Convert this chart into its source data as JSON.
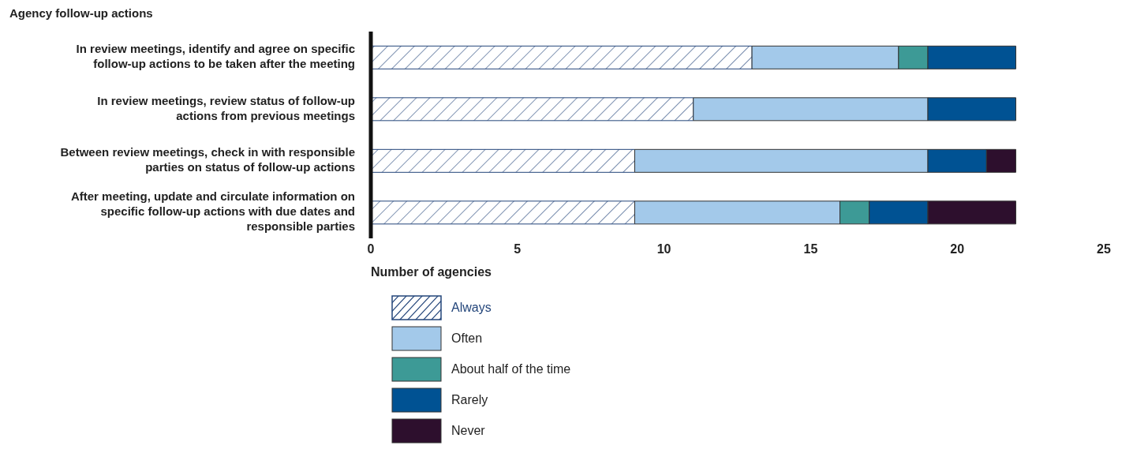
{
  "chart_data": {
    "type": "bar",
    "orientation": "horizontal",
    "stacked": true,
    "title": "Agency follow-up actions",
    "xlabel": "Number of agencies",
    "categories": [
      "In review meetings, identify and agree on specific follow-up actions to be taken after the meeting",
      "In review meetings, review status of follow-up actions from previous meetings",
      "Between review meetings, check in with responsible parties on status of follow-up actions",
      "After meeting, update and circulate information on specific follow-up actions with due dates and responsible parties"
    ],
    "series": [
      {
        "name": "Always",
        "color": "#23457a",
        "values": [
          13,
          11,
          9,
          9
        ]
      },
      {
        "name": "Often",
        "color": "#a3c9ea",
        "values": [
          5,
          8,
          10,
          7
        ]
      },
      {
        "name": "About half of the time",
        "color": "#3d9a96",
        "values": [
          1,
          0,
          0,
          1
        ]
      },
      {
        "name": "Rarely",
        "color": "#005293",
        "values": [
          3,
          3,
          2,
          2
        ]
      },
      {
        "name": "Never",
        "color": "#2d0f2d",
        "values": [
          0,
          0,
          1,
          3
        ]
      }
    ],
    "xlim": [
      0,
      25
    ],
    "xticks": [
      0,
      5,
      10,
      15,
      20,
      25
    ],
    "grid": false,
    "legend": "bottom"
  }
}
